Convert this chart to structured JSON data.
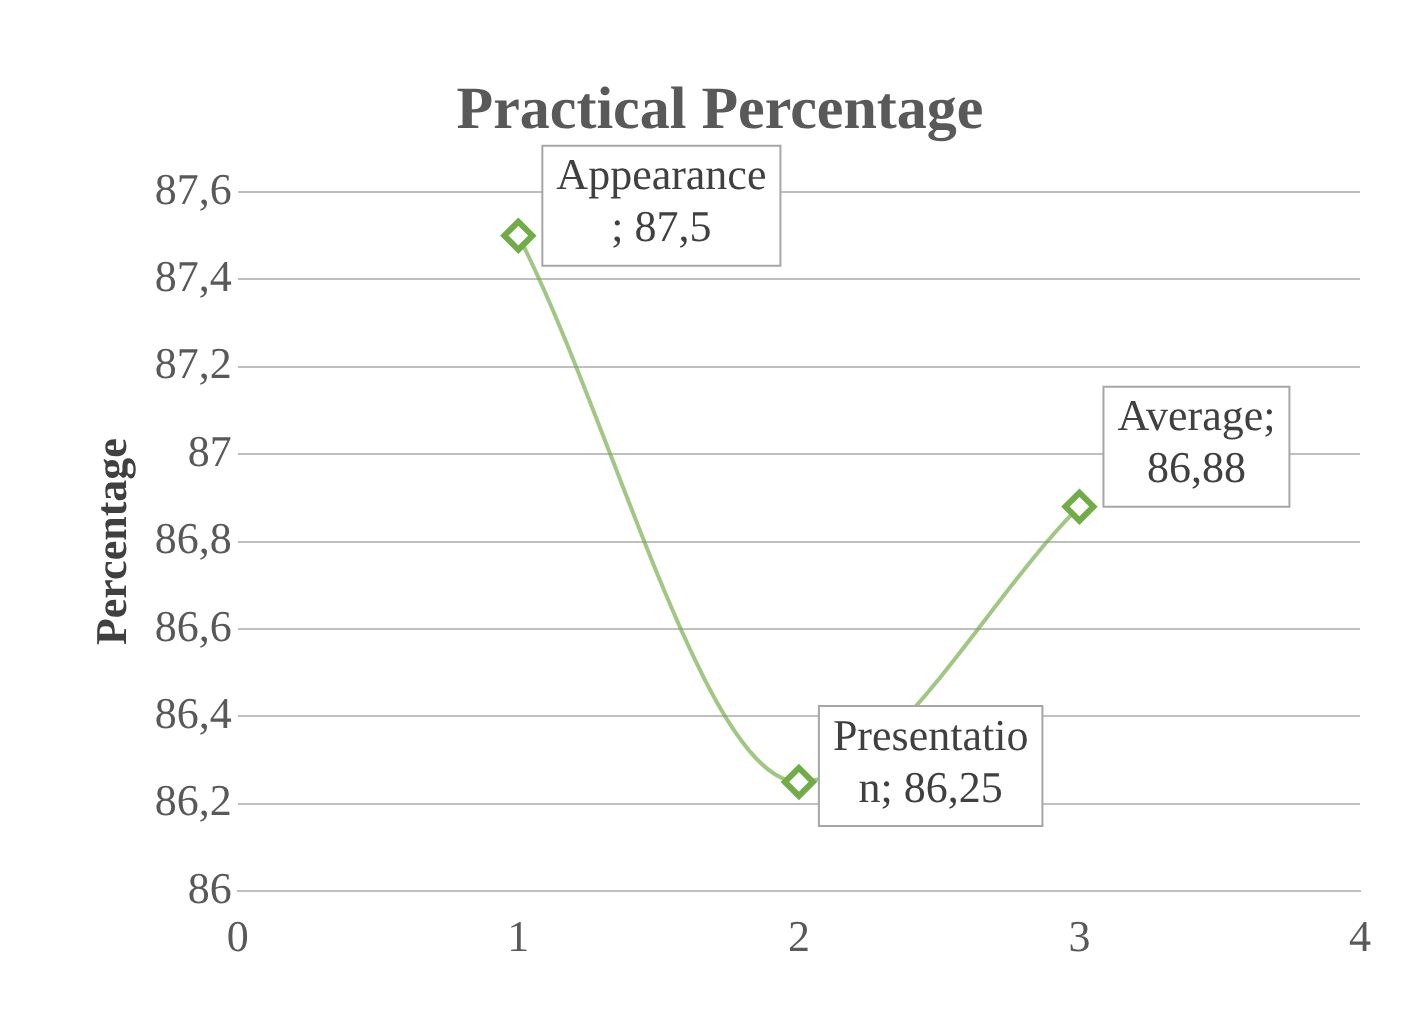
{
  "chart_data": {
    "type": "scatter",
    "title": "Practical Percentage",
    "ylabel": "Percentage",
    "x": [
      1,
      2,
      3
    ],
    "series": [
      {
        "type": "line",
        "color": "#70ad47",
        "values": [
          87.5,
          86.25,
          86.88
        ],
        "value_labels": [
          "Appearance\n; 87,5",
          "Presentatio\nn; 86,25",
          "Average;\n86,88"
        ]
      }
    ],
    "xlim": [
      0,
      4
    ],
    "xticks": [
      0,
      1,
      2,
      3,
      4
    ],
    "ylim": [
      86,
      87.6
    ],
    "yticks": [
      86,
      {
        "value": 86.2,
        "label": "86,2"
      },
      {
        "value": 86.4,
        "label": "86,4"
      },
      {
        "value": 86.6,
        "label": "86,6"
      },
      {
        "value": 86.8,
        "label": "86,8"
      },
      87,
      {
        "value": 87.2,
        "label": "87,2"
      },
      {
        "value": 87.4,
        "label": "87,4"
      },
      {
        "value": 87.6,
        "label": "87,6"
      }
    ],
    "grid": "y",
    "marker": "diamond",
    "line_style": "solid",
    "legend": false
  }
}
